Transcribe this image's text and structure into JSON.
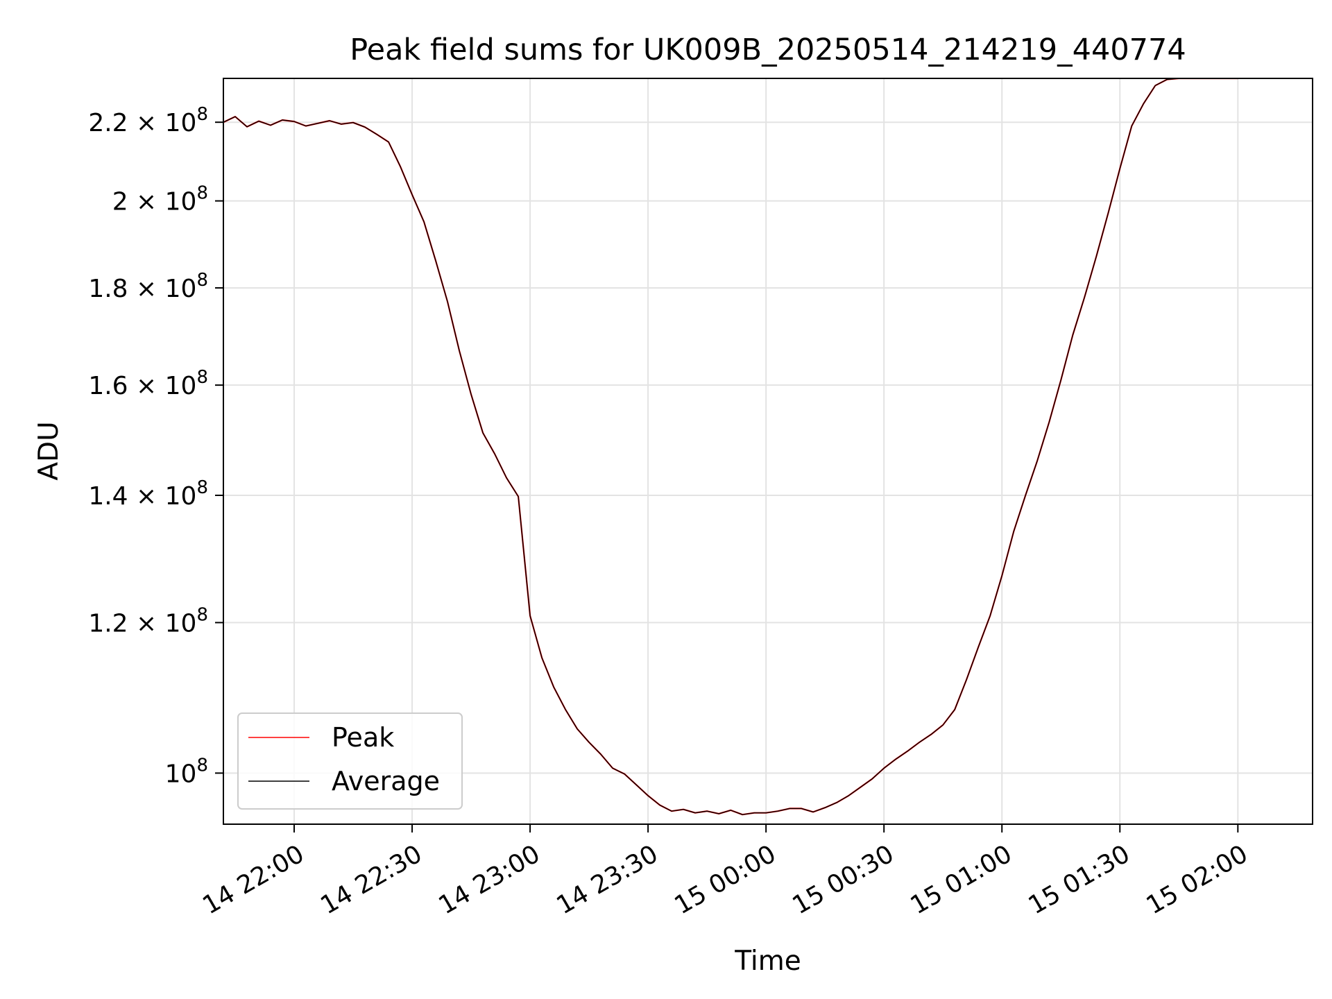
{
  "chart_data": {
    "type": "line",
    "title": "Peak field sums for UK009B_20250514_214219_440774",
    "xlabel": "Time",
    "ylabel": "ADU",
    "x_axis_type": "datetime",
    "y_scale": "log",
    "xlim": [
      "2025-05-14 21:42:00",
      "2025-05-15 02:19:00"
    ],
    "ylim": [
      94000000,
      232000000
    ],
    "grid": true,
    "legend_location": "lower left",
    "x_ticks": [
      {
        "value": "2025-05-14 22:00",
        "label": "14 22:00"
      },
      {
        "value": "2025-05-14 22:30",
        "label": "14 22:30"
      },
      {
        "value": "2025-05-14 23:00",
        "label": "14 23:00"
      },
      {
        "value": "2025-05-14 23:30",
        "label": "14 23:30"
      },
      {
        "value": "2025-05-15 00:00",
        "label": "15 00:00"
      },
      {
        "value": "2025-05-15 00:30",
        "label": "15 00:30"
      },
      {
        "value": "2025-05-15 01:00",
        "label": "15 01:00"
      },
      {
        "value": "2025-05-15 01:30",
        "label": "15 01:30"
      },
      {
        "value": "2025-05-15 02:00",
        "label": "15 02:00"
      }
    ],
    "y_ticks": [
      {
        "value": 100000000,
        "base": "10",
        "exp": "8"
      },
      {
        "value": 120000000,
        "base": "1.2 × 10",
        "exp": "8"
      },
      {
        "value": 140000000,
        "base": "1.4 × 10",
        "exp": "8"
      },
      {
        "value": 160000000,
        "base": "1.6 × 10",
        "exp": "8"
      },
      {
        "value": 180000000,
        "base": "1.8 × 10",
        "exp": "8"
      },
      {
        "value": 200000000,
        "base": "2 × 10",
        "exp": "8"
      },
      {
        "value": 220000000,
        "base": "2.2 × 10",
        "exp": "8"
      }
    ],
    "x": [
      "2025-05-14 21:42",
      "2025-05-14 21:45",
      "2025-05-14 21:48",
      "2025-05-14 21:51",
      "2025-05-14 21:54",
      "2025-05-14 21:57",
      "2025-05-14 22:00",
      "2025-05-14 22:03",
      "2025-05-14 22:06",
      "2025-05-14 22:09",
      "2025-05-14 22:12",
      "2025-05-14 22:15",
      "2025-05-14 22:18",
      "2025-05-14 22:21",
      "2025-05-14 22:24",
      "2025-05-14 22:27",
      "2025-05-14 22:30",
      "2025-05-14 22:33",
      "2025-05-14 22:36",
      "2025-05-14 22:39",
      "2025-05-14 22:42",
      "2025-05-14 22:45",
      "2025-05-14 22:48",
      "2025-05-14 22:51",
      "2025-05-14 22:54",
      "2025-05-14 22:57",
      "2025-05-14 23:00",
      "2025-05-14 23:03",
      "2025-05-14 23:06",
      "2025-05-14 23:09",
      "2025-05-14 23:12",
      "2025-05-14 23:15",
      "2025-05-14 23:18",
      "2025-05-14 23:21",
      "2025-05-14 23:24",
      "2025-05-14 23:27",
      "2025-05-14 23:30",
      "2025-05-14 23:33",
      "2025-05-14 23:36",
      "2025-05-14 23:39",
      "2025-05-14 23:42",
      "2025-05-14 23:45",
      "2025-05-14 23:48",
      "2025-05-14 23:51",
      "2025-05-14 23:54",
      "2025-05-14 23:57",
      "2025-05-15 00:00",
      "2025-05-15 00:03",
      "2025-05-15 00:06",
      "2025-05-15 00:09",
      "2025-05-15 00:12",
      "2025-05-15 00:15",
      "2025-05-15 00:18",
      "2025-05-15 00:21",
      "2025-05-15 00:24",
      "2025-05-15 00:27",
      "2025-05-15 00:30",
      "2025-05-15 00:33",
      "2025-05-15 00:36",
      "2025-05-15 00:39",
      "2025-05-15 00:42",
      "2025-05-15 00:45",
      "2025-05-15 00:48",
      "2025-05-15 00:51",
      "2025-05-15 00:54",
      "2025-05-15 00:57",
      "2025-05-15 01:00",
      "2025-05-15 01:03",
      "2025-05-15 01:06",
      "2025-05-15 01:09",
      "2025-05-15 01:12",
      "2025-05-15 01:15",
      "2025-05-15 01:18",
      "2025-05-15 01:21",
      "2025-05-15 01:24",
      "2025-05-15 01:27",
      "2025-05-15 01:30",
      "2025-05-15 01:33",
      "2025-05-15 01:36",
      "2025-05-15 01:39",
      "2025-05-15 01:42",
      "2025-05-15 01:45",
      "2025-05-15 01:48",
      "2025-05-15 01:51",
      "2025-05-15 01:54",
      "2025-05-15 01:57",
      "2025-05-15 02:00"
    ],
    "series": [
      {
        "name": "Peak",
        "color": "#ff0000",
        "values": [
          220000000,
          221500000,
          218800000,
          220300000,
          219200000,
          220600000,
          220200000,
          219000000,
          219700000,
          220400000,
          219500000,
          219900000,
          218700000,
          216800000,
          214800000,
          208500000,
          201500000,
          195000000,
          186000000,
          177000000,
          166800000,
          158200000,
          151000000,
          147200000,
          143000000,
          139800000,
          121000000,
          115000000,
          111000000,
          108000000,
          105500000,
          103800000,
          102300000,
          100600000,
          99900000,
          98600000,
          97300000,
          96200000,
          95500000,
          95700000,
          95300000,
          95500000,
          95200000,
          95600000,
          95100000,
          95300000,
          95300000,
          95500000,
          95800000,
          95800000,
          95400000,
          95900000,
          96500000,
          97300000,
          98300000,
          99300000,
          100600000,
          101700000,
          102700000,
          103800000,
          104800000,
          106000000,
          108000000,
          112000000,
          116500000,
          121000000,
          127000000,
          134000000,
          140000000,
          146000000,
          153000000,
          161000000,
          170000000,
          178000000,
          187000000,
          197000000,
          208000000,
          219000000,
          225000000,
          230000000,
          231700000,
          232000000,
          232000000,
          232000000,
          232000000,
          232000000,
          232000000
        ]
      },
      {
        "name": "Average",
        "color": "#000000",
        "values": [
          220000000,
          221500000,
          218800000,
          220300000,
          219200000,
          220600000,
          220200000,
          219000000,
          219700000,
          220400000,
          219500000,
          219900000,
          218700000,
          216800000,
          214800000,
          208500000,
          201500000,
          195000000,
          186000000,
          177000000,
          166800000,
          158200000,
          151000000,
          147200000,
          143000000,
          139800000,
          121000000,
          115000000,
          111000000,
          108000000,
          105500000,
          103800000,
          102300000,
          100600000,
          99900000,
          98600000,
          97300000,
          96200000,
          95500000,
          95700000,
          95300000,
          95500000,
          95200000,
          95600000,
          95100000,
          95300000,
          95300000,
          95500000,
          95800000,
          95800000,
          95400000,
          95900000,
          96500000,
          97300000,
          98300000,
          99300000,
          100600000,
          101700000,
          102700000,
          103800000,
          104800000,
          106000000,
          108000000,
          112000000,
          116500000,
          121000000,
          127000000,
          134000000,
          140000000,
          146000000,
          153000000,
          161000000,
          170000000,
          178000000,
          187000000,
          197000000,
          208000000,
          219000000,
          225000000,
          230000000,
          231700000,
          232000000,
          232000000,
          232000000,
          232000000,
          232000000,
          232000000
        ]
      }
    ]
  }
}
